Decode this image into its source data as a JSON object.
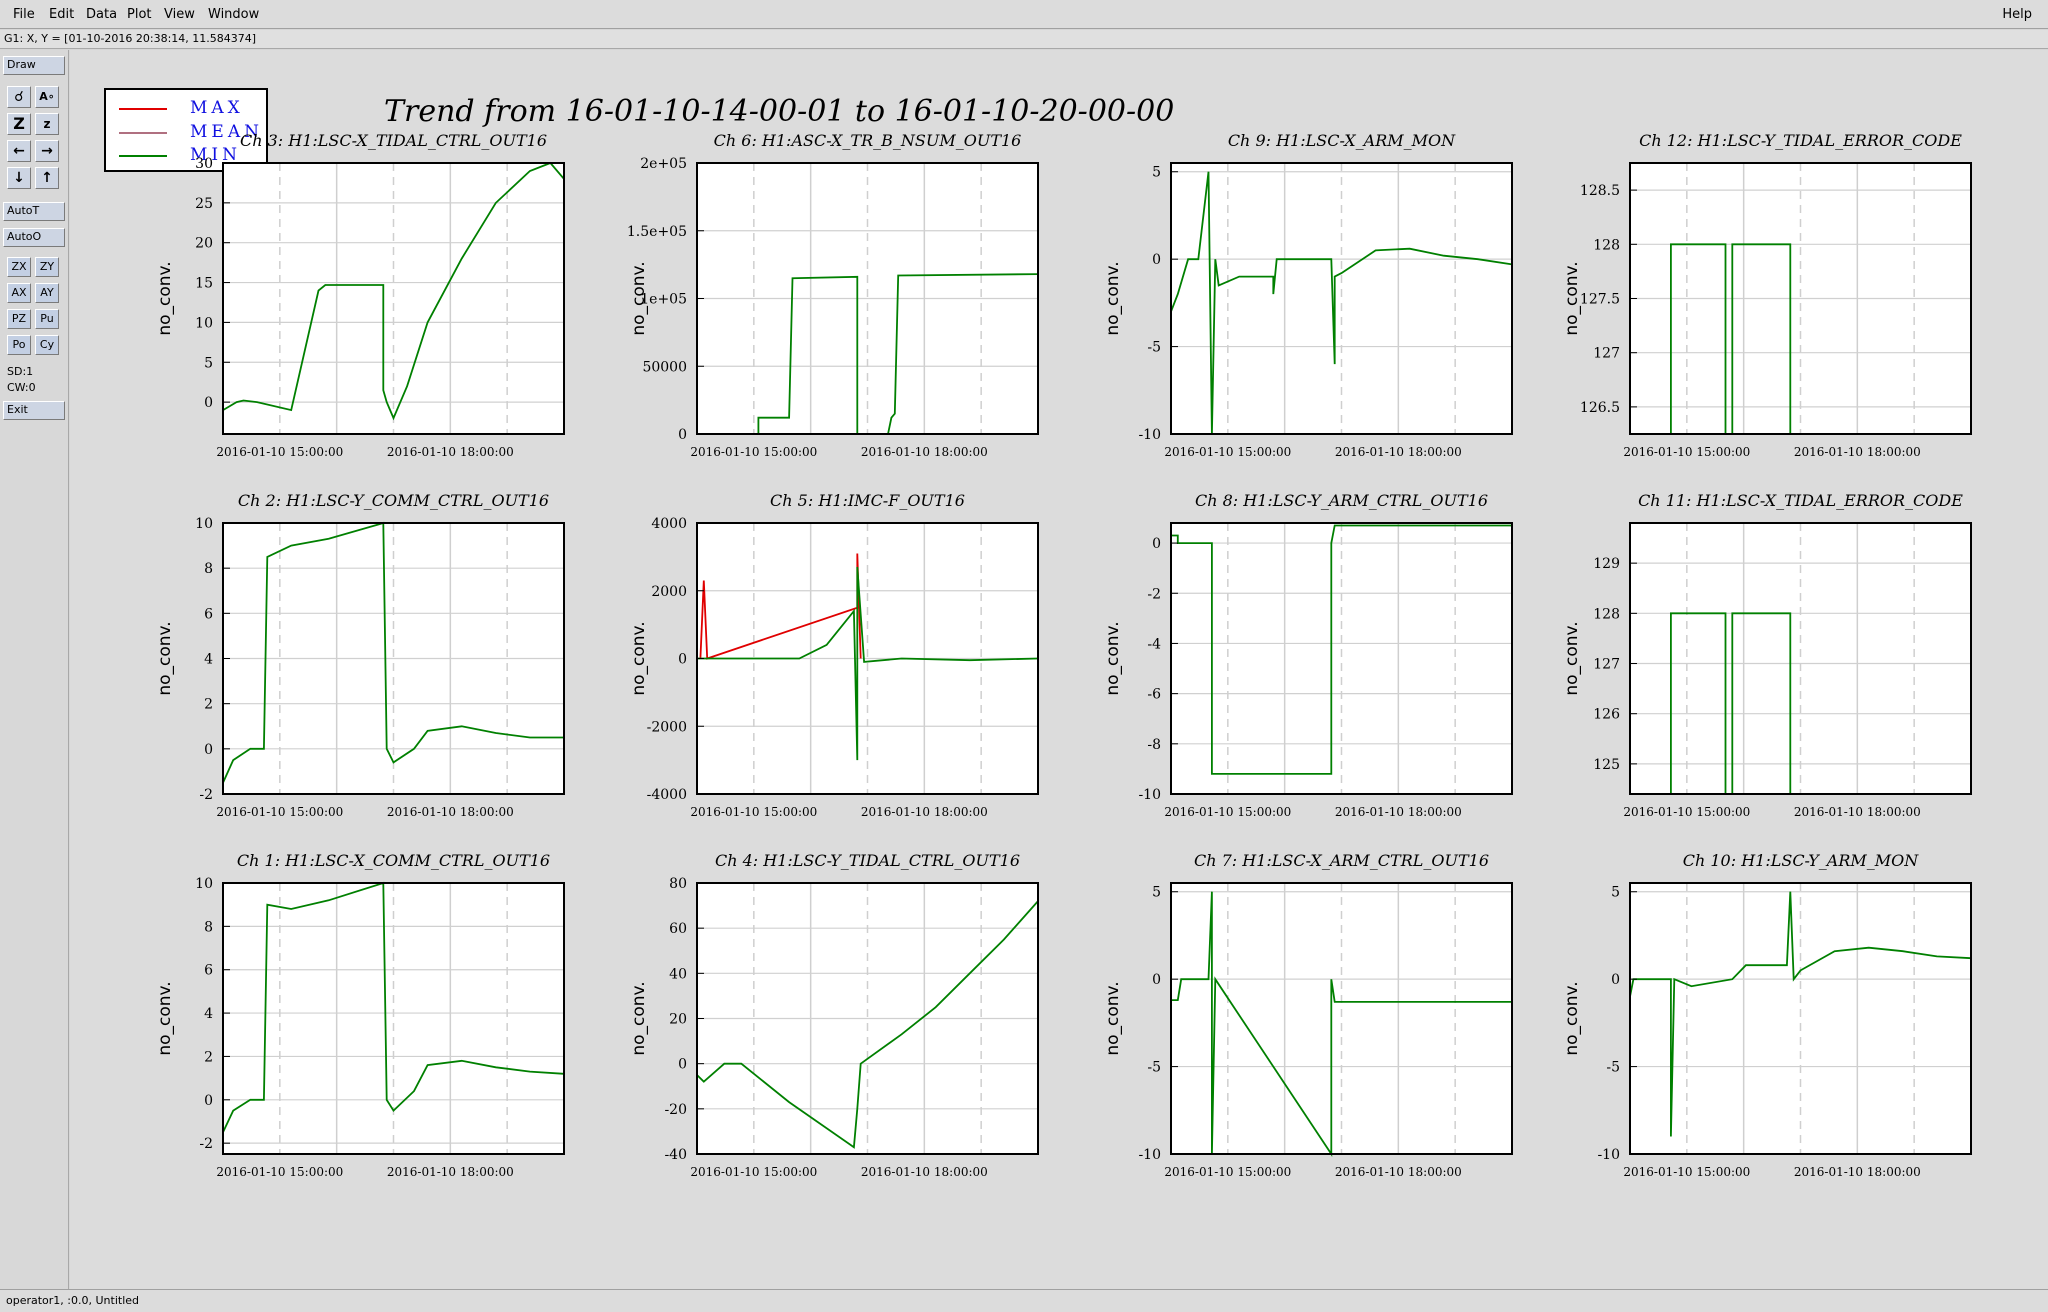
{
  "menu": {
    "items": [
      "File",
      "Edit",
      "Data",
      "Plot",
      "View",
      "Window"
    ],
    "help": "Help"
  },
  "status": "G1: X, Y = [01-10-2016 20:38:14, 11.584374]",
  "toolbar": {
    "draw": "Draw",
    "autot": "AutoT",
    "autoo": "AutoO",
    "small_buttons": [
      "ZX",
      "ZY",
      "AX",
      "AY",
      "PZ",
      "Pu",
      "Po",
      "Cy"
    ],
    "sd": "SD:1",
    "cw": "CW:0",
    "exit": "Exit",
    "icons": [
      "zoom-icon",
      "annotate-icon",
      "zoom-in-icon",
      "zoom-out-icon",
      "arrow-left-icon",
      "arrow-right-icon",
      "arrow-down-icon",
      "arrow-up-icon"
    ]
  },
  "legend": [
    {
      "label": "MAX",
      "color": "#e00000"
    },
    {
      "label": "MEAN",
      "color": "#b07080"
    },
    {
      "label": "MIN",
      "color": "#008000"
    }
  ],
  "main_title": "Trend from 16-01-10-14-00-01 to 16-01-10-20-00-00",
  "footer": "operator1, :0.0, Untitled",
  "x_tick_labels": [
    "2016-01-10 15:00:00",
    "2016-01-10 18:00:00"
  ],
  "chart_data": [
    {
      "type": "line",
      "title": "Ch 3: H1:LSC-X_TIDAL_CTRL_OUT16",
      "ylabel": "no_conv.",
      "ylim": [
        -4,
        30
      ],
      "yticks": [
        "0",
        "5",
        "10",
        "15",
        "20",
        "25",
        "30"
      ],
      "series": [
        {
          "name": "MIN",
          "x": [
            0,
            0.02,
            0.04,
            0.06,
            0.1,
            0.2,
            0.28,
            0.3,
            0.47,
            0.47,
            0.48,
            0.49,
            0.5,
            0.54,
            0.6,
            0.7,
            0.8,
            0.9,
            0.96,
            1
          ],
          "y": [
            -1,
            -0.5,
            0,
            0.2,
            0,
            -1,
            14,
            14.7,
            14.7,
            1.5,
            0,
            -1,
            -2,
            2,
            10,
            18,
            25,
            29,
            30,
            28
          ]
        }
      ]
    },
    {
      "type": "line",
      "title": "Ch 6: H1:ASC-X_TR_B_NSUM_OUT16",
      "ylabel": "no_conv.",
      "ylim": [
        0,
        200000
      ],
      "yticks": [
        "0",
        "50000",
        "1e+05",
        "1.5e+05",
        "2e+05"
      ],
      "series": [
        {
          "name": "MIN",
          "x": [
            0.18,
            0.18,
            0.27,
            0.28,
            0.47,
            0.47,
            0.56,
            0.57,
            0.58,
            0.59,
            1
          ],
          "y": [
            0,
            12000,
            12000,
            115000,
            116000,
            0,
            0,
            12000,
            15000,
            117000,
            118000
          ]
        }
      ]
    },
    {
      "type": "line",
      "title": "Ch 9: H1:LSC-X_ARM_MON",
      "ylabel": "no_conv.",
      "ylim": [
        -10,
        5.5
      ],
      "yticks": [
        "-10",
        "-5",
        "0",
        "5"
      ],
      "series": [
        {
          "name": "MIN",
          "x": [
            0,
            0.02,
            0.05,
            0.08,
            0.11,
            0.12,
            0.13,
            0.14,
            0.2,
            0.3,
            0.3,
            0.31,
            0.47,
            0.48,
            0.48,
            0.5,
            0.6,
            0.7,
            0.8,
            0.9,
            1
          ],
          "y": [
            -3,
            -2,
            0,
            0,
            5,
            -10,
            0,
            -1.5,
            -1,
            -1,
            -2,
            0,
            0,
            -6,
            -1,
            -0.8,
            0.5,
            0.6,
            0.2,
            0,
            -0.3
          ]
        }
      ]
    },
    {
      "type": "line",
      "title": "Ch 12: H1:LSC-Y_TIDAL_ERROR_CODE",
      "ylabel": "no_conv.",
      "ylim": [
        126.25,
        128.75
      ],
      "yticks": [
        "126.5",
        "127",
        "127.5",
        "128",
        "128.5"
      ],
      "series": [
        {
          "name": "MIN",
          "x": [
            0.12,
            0.12,
            0.28,
            0.28,
            0.3,
            0.3,
            0.47,
            0.47
          ],
          "y": [
            126.25,
            128,
            128,
            126.25,
            126.25,
            128,
            128,
            126.25
          ]
        }
      ]
    },
    {
      "type": "line",
      "title": "Ch 2: H1:LSC-Y_COMM_CTRL_OUT16",
      "ylabel": "no_conv.",
      "ylim": [
        -2,
        10
      ],
      "yticks": [
        "-2",
        "0",
        "2",
        "4",
        "6",
        "8",
        "10"
      ],
      "series": [
        {
          "name": "MIN",
          "x": [
            0,
            0.03,
            0.08,
            0.12,
            0.13,
            0.2,
            0.31,
            0.47,
            0.48,
            0.5,
            0.56,
            0.6,
            0.7,
            0.8,
            0.9,
            1
          ],
          "y": [
            -1.5,
            -0.5,
            0,
            0,
            8.5,
            9,
            9.3,
            10,
            0,
            -0.6,
            0,
            0.8,
            1,
            0.7,
            0.5,
            0.5
          ]
        }
      ]
    },
    {
      "type": "line",
      "title": "Ch 5: H1:IMC-F_OUT16",
      "ylabel": "no_conv.",
      "ylim": [
        -4000,
        4000
      ],
      "yticks": [
        "-4000",
        "-2000",
        "0",
        "2000",
        "4000"
      ],
      "series": [
        {
          "name": "MAX",
          "x": [
            0.01,
            0.02,
            0.03,
            0.47,
            0.47,
            0.48
          ],
          "y": [
            0,
            2300,
            0,
            1500,
            3100,
            0
          ]
        },
        {
          "name": "MIN",
          "x": [
            0,
            0.1,
            0.3,
            0.38,
            0.46,
            0.47,
            0.47,
            0.49,
            0.6,
            0.8,
            1
          ],
          "y": [
            0,
            0,
            0,
            400,
            1400,
            -3000,
            2700,
            -100,
            0,
            -50,
            0
          ]
        }
      ]
    },
    {
      "type": "line",
      "title": "Ch 8: H1:LSC-Y_ARM_CTRL_OUT16",
      "ylabel": "no_conv.",
      "ylim": [
        -10,
        0.8
      ],
      "yticks": [
        "-10",
        "-8",
        "-6",
        "-4",
        "-2",
        "0"
      ],
      "series": [
        {
          "name": "MIN",
          "x": [
            0,
            0.02,
            0.02,
            0.12,
            0.12,
            0.47,
            0.47,
            0.48,
            1
          ],
          "y": [
            0.3,
            0.3,
            0,
            0,
            -9.2,
            -9.2,
            0,
            0.7,
            0.7
          ]
        }
      ]
    },
    {
      "type": "line",
      "title": "Ch 11: H1:LSC-X_TIDAL_ERROR_CODE",
      "ylabel": "no_conv.",
      "ylim": [
        124.4,
        129.8
      ],
      "yticks": [
        "125",
        "126",
        "127",
        "128",
        "129"
      ],
      "series": [
        {
          "name": "MIN",
          "x": [
            0.12,
            0.12,
            0.28,
            0.28,
            0.3,
            0.3,
            0.47,
            0.47
          ],
          "y": [
            124.4,
            128,
            128,
            124.4,
            124.4,
            128,
            128,
            124.4
          ]
        }
      ]
    },
    {
      "type": "line",
      "title": "Ch 1: H1:LSC-X_COMM_CTRL_OUT16",
      "ylabel": "no_conv.",
      "ylim": [
        -2.5,
        10
      ],
      "yticks": [
        "-2",
        "0",
        "2",
        "4",
        "6",
        "8",
        "10"
      ],
      "series": [
        {
          "name": "MIN",
          "x": [
            0,
            0.03,
            0.08,
            0.12,
            0.13,
            0.2,
            0.31,
            0.47,
            0.48,
            0.5,
            0.56,
            0.6,
            0.7,
            0.8,
            0.9,
            1
          ],
          "y": [
            -1.5,
            -0.5,
            0,
            0,
            9,
            8.8,
            9.2,
            10,
            0,
            -0.5,
            0.4,
            1.6,
            1.8,
            1.5,
            1.3,
            1.2
          ]
        }
      ]
    },
    {
      "type": "line",
      "title": "Ch 4: H1:LSC-Y_TIDAL_CTRL_OUT16",
      "ylabel": "no_conv.",
      "ylim": [
        -40,
        80
      ],
      "yticks": [
        "-40",
        "-20",
        "0",
        "20",
        "40",
        "60",
        "80"
      ],
      "series": [
        {
          "name": "MIN",
          "x": [
            0,
            0.02,
            0.08,
            0.13,
            0.27,
            0.46,
            0.47,
            0.48,
            0.6,
            0.7,
            0.8,
            0.9,
            1
          ],
          "y": [
            -5,
            -8,
            0,
            0,
            -17,
            -37,
            -20,
            0,
            13,
            25,
            40,
            55,
            72
          ]
        }
      ]
    },
    {
      "type": "line",
      "title": "Ch 7: H1:LSC-X_ARM_CTRL_OUT16",
      "ylabel": "no_conv.",
      "ylim": [
        -10,
        5.5
      ],
      "yticks": [
        "-10",
        "-5",
        "0",
        "5"
      ],
      "series": [
        {
          "name": "MIN",
          "x": [
            0,
            0.02,
            0.03,
            0.11,
            0.12,
            0.12,
            0.13,
            0.47,
            0.47,
            0.48,
            0.49,
            1
          ],
          "y": [
            -1.2,
            -1.2,
            0,
            0,
            5,
            -10,
            0,
            -10,
            0,
            -1.3,
            -1.3,
            -1.3
          ]
        }
      ]
    },
    {
      "type": "line",
      "title": "Ch 10: H1:LSC-Y_ARM_MON",
      "ylabel": "no_conv.",
      "ylim": [
        -10,
        5.5
      ],
      "yticks": [
        "-10",
        "-5",
        "0",
        "5"
      ],
      "series": [
        {
          "name": "MIN",
          "x": [
            0,
            0.01,
            0.08,
            0.12,
            0.12,
            0.13,
            0.18,
            0.3,
            0.34,
            0.46,
            0.47,
            0.48,
            0.5,
            0.6,
            0.7,
            0.8,
            0.9,
            1
          ],
          "y": [
            -1,
            0,
            0,
            0,
            -9,
            0,
            -0.4,
            0,
            0.8,
            0.8,
            5,
            0,
            0.5,
            1.6,
            1.8,
            1.6,
            1.3,
            1.2
          ]
        }
      ]
    }
  ]
}
